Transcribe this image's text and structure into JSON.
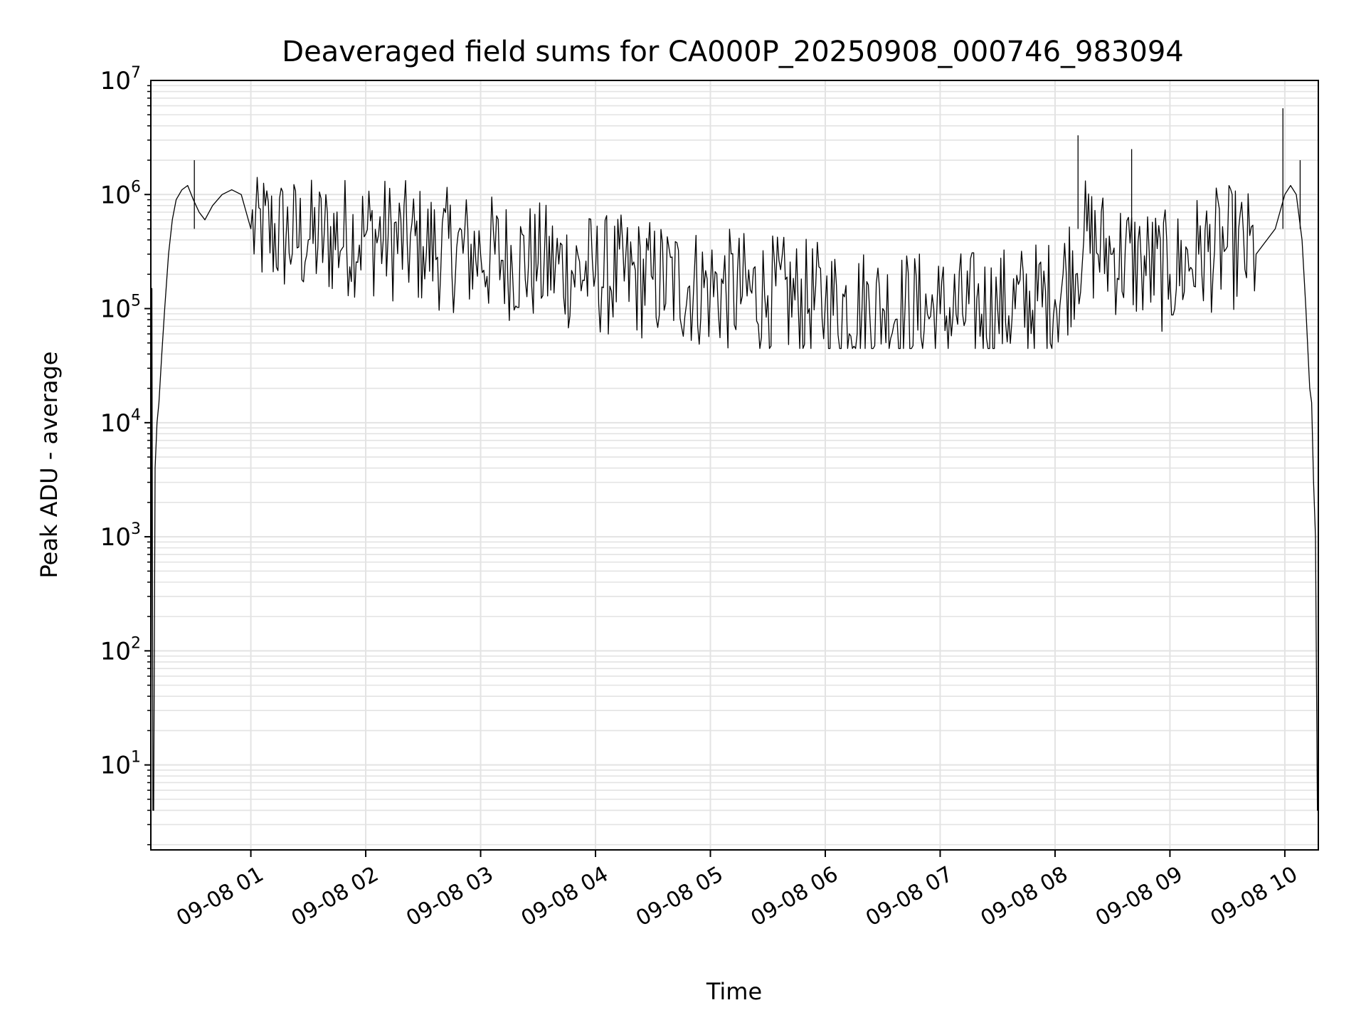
{
  "chart_data": {
    "type": "line",
    "title": "Deaveraged field sums for CA000P_20250908_000746_983094",
    "xlabel": "Time",
    "ylabel": "Peak ADU - average",
    "y_scale": "log",
    "ylim": [
      1.8,
      10000000
    ],
    "xlim": [
      "2025-09-08 00:07:46",
      "2025-09-08 10:17:30"
    ],
    "grid": true,
    "legend": "none",
    "line_color": "#000000",
    "grid_color": "#e3e3e3",
    "x_ticks": [
      {
        "value": "2025-09-08 01:00",
        "label": "09-08 01"
      },
      {
        "value": "2025-09-08 02:00",
        "label": "09-08 02"
      },
      {
        "value": "2025-09-08 03:00",
        "label": "09-08 03"
      },
      {
        "value": "2025-09-08 04:00",
        "label": "09-08 04"
      },
      {
        "value": "2025-09-08 05:00",
        "label": "09-08 05"
      },
      {
        "value": "2025-09-08 06:00",
        "label": "09-08 06"
      },
      {
        "value": "2025-09-08 07:00",
        "label": "09-08 07"
      },
      {
        "value": "2025-09-08 08:00",
        "label": "09-08 08"
      },
      {
        "value": "2025-09-08 09:00",
        "label": "09-08 09"
      },
      {
        "value": "2025-09-08 10:00",
        "label": "09-08 10"
      }
    ],
    "y_ticks": [
      {
        "value": 10,
        "base": "10",
        "exp": "1"
      },
      {
        "value": 100,
        "base": "10",
        "exp": "2"
      },
      {
        "value": 1000,
        "base": "10",
        "exp": "3"
      },
      {
        "value": 10000,
        "base": "10",
        "exp": "4"
      },
      {
        "value": 100000,
        "base": "10",
        "exp": "5"
      },
      {
        "value": 1000000,
        "base": "10",
        "exp": "6"
      },
      {
        "value": 10000000,
        "base": "10",
        "exp": "7"
      }
    ],
    "series": [
      {
        "x": [
          "2025-09-08 00:07:46",
          "2025-09-08 00:08:20",
          "2025-09-08 00:08:50",
          "2025-09-08 00:09:15",
          "2025-09-08 00:10:00",
          "2025-09-08 00:11:00",
          "2025-09-08 00:12:00",
          "2025-09-08 00:13:30",
          "2025-09-08 00:15:00",
          "2025-09-08 00:17:00",
          "2025-09-08 00:19:00",
          "2025-09-08 00:21:00",
          "2025-09-08 00:24:00",
          "2025-09-08 00:27:00",
          "2025-09-08 00:30:00",
          "2025-09-08 00:33:00",
          "2025-09-08 00:36:00",
          "2025-09-08 00:40:00",
          "2025-09-08 00:45:00",
          "2025-09-08 00:50:00",
          "2025-09-08 00:55:00",
          "2025-09-08 01:00:00",
          "2025-09-08 01:30:00",
          "2025-09-08 02:00:00",
          "2025-09-08 02:30:00",
          "2025-09-08 03:00:00",
          "2025-09-08 03:30:00",
          "2025-09-08 04:00:00",
          "2025-09-08 04:30:00",
          "2025-09-08 05:00:00",
          "2025-09-08 05:30:00",
          "2025-09-08 06:00:00",
          "2025-09-08 06:30:00",
          "2025-09-08 07:00:00",
          "2025-09-08 07:30:00",
          "2025-09-08 08:00:00",
          "2025-09-08 08:15:00",
          "2025-09-08 08:30:00",
          "2025-09-08 08:45:00",
          "2025-09-08 09:00:00",
          "2025-09-08 09:15:00",
          "2025-09-08 09:30:00",
          "2025-09-08 09:45:00",
          "2025-09-08 09:55:00",
          "2025-09-08 10:00:00",
          "2025-09-08 10:03:00",
          "2025-09-08 10:06:00",
          "2025-09-08 10:09:00",
          "2025-09-08 10:11:00",
          "2025-09-08 10:13:00",
          "2025-09-08 10:14:00",
          "2025-09-08 10:15:00",
          "2025-09-08 10:16:00",
          "2025-09-08 10:17:00",
          "2025-09-08 10:17:30"
        ],
        "y": [
          1.8,
          150000,
          4,
          4,
          4000,
          10000,
          15000,
          40000,
          100000,
          300000,
          600000,
          900000,
          1100000,
          1200000,
          900000,
          700000,
          600000,
          800000,
          1000000,
          1100000,
          1000000,
          500000,
          400000,
          450000,
          350000,
          300000,
          250000,
          200000,
          180000,
          150000,
          130000,
          110000,
          100000,
          90000,
          100000,
          120000,
          400000,
          300000,
          250000,
          200000,
          300000,
          350000,
          300000,
          500000,
          1000000,
          1200000,
          1000000,
          400000,
          100000,
          20000,
          15000,
          3000,
          1000,
          4,
          4
        ]
      }
    ]
  }
}
